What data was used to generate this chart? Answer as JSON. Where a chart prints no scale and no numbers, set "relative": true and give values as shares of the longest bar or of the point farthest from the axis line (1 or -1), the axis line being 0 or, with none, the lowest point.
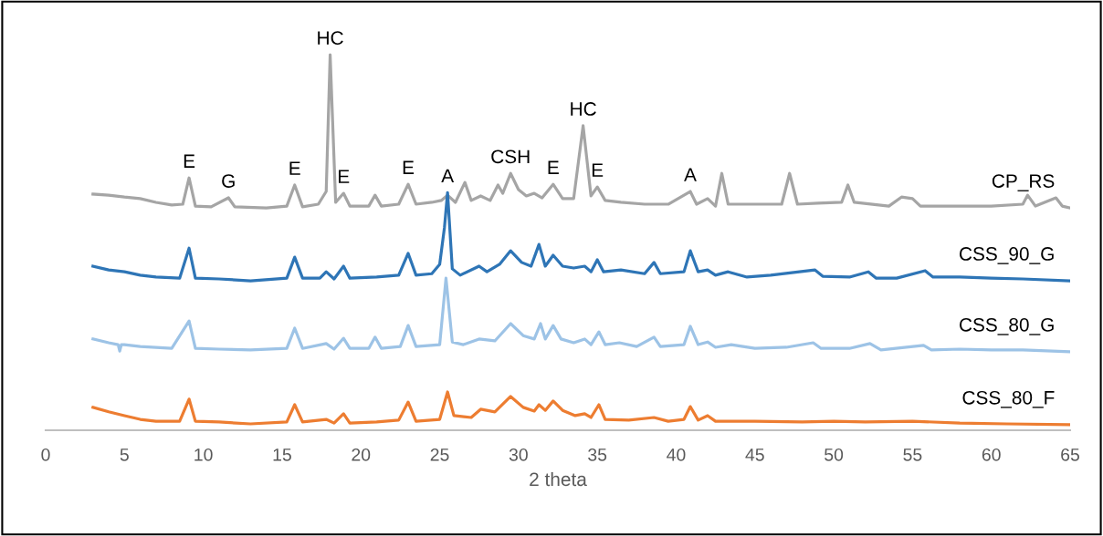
{
  "chart_data": {
    "type": "line",
    "relative": true,
    "xlabel": "2 theta",
    "xlim": [
      0,
      65
    ],
    "xticks": [
      0,
      5,
      10,
      15,
      20,
      25,
      30,
      35,
      40,
      45,
      50,
      55,
      60,
      65
    ],
    "grid": false,
    "legend": false,
    "marker": "none",
    "line_style": "solid",
    "series": [
      {
        "name": "CP_RS",
        "color": "#a5a5a5",
        "x": [
          3,
          4,
          5,
          6,
          7,
          8,
          8.7,
          9.1,
          9.5,
          10.5,
          11.6,
          12,
          14,
          15.3,
          15.8,
          16.3,
          17.3,
          17.8,
          18.05,
          18.4,
          18.9,
          19.3,
          20.5,
          20.9,
          21.3,
          22.4,
          23.0,
          23.5,
          24.5,
          25.1,
          25.5,
          26.0,
          26.6,
          27.0,
          27.6,
          28.2,
          28.7,
          29.0,
          29.5,
          30.0,
          30.5,
          31.0,
          31.5,
          32.2,
          32.8,
          33.5,
          34.1,
          34.6,
          35.0,
          35.5,
          36.5,
          38,
          39.5,
          40.9,
          41.3,
          42.0,
          42.5,
          42.9,
          43.3,
          45,
          46.7,
          47.2,
          47.7,
          49,
          50.5,
          50.9,
          51.3,
          53.5,
          54.3,
          55.0,
          55.5,
          58,
          60,
          62,
          62.3,
          62.8,
          64.1,
          64.5,
          65
        ],
        "values": [
          0.629,
          0.626,
          0.621,
          0.617,
          0.607,
          0.6,
          0.602,
          0.672,
          0.597,
          0.595,
          0.619,
          0.595,
          0.592,
          0.597,
          0.653,
          0.595,
          0.602,
          0.636,
          1.0,
          0.607,
          0.631,
          0.597,
          0.597,
          0.626,
          0.597,
          0.602,
          0.655,
          0.602,
          0.607,
          0.612,
          0.626,
          0.607,
          0.66,
          0.612,
          0.624,
          0.612,
          0.653,
          0.631,
          0.684,
          0.641,
          0.624,
          0.631,
          0.619,
          0.655,
          0.617,
          0.617,
          0.811,
          0.624,
          0.648,
          0.612,
          0.607,
          0.602,
          0.602,
          0.636,
          0.602,
          0.617,
          0.597,
          0.684,
          0.602,
          0.602,
          0.602,
          0.684,
          0.602,
          0.605,
          0.607,
          0.653,
          0.607,
          0.597,
          0.621,
          0.617,
          0.597,
          0.597,
          0.597,
          0.602,
          0.626,
          0.597,
          0.619,
          0.597,
          0.592
        ]
      },
      {
        "name": "CSS_90_G",
        "color": "#2e75b6",
        "x": [
          3,
          4,
          5,
          6,
          7,
          8.5,
          9.1,
          9.5,
          11,
          13,
          15.3,
          15.8,
          16.3,
          17.4,
          17.8,
          18.3,
          18.9,
          19.3,
          21,
          22.4,
          23.0,
          23.5,
          24.5,
          25.0,
          25.3,
          25.5,
          25.8,
          26.3,
          27.5,
          28.0,
          28.8,
          29.5,
          30.2,
          30.8,
          31.3,
          31.7,
          32.2,
          32.8,
          33.5,
          34.2,
          34.6,
          35.0,
          35.4,
          36.5,
          38.0,
          38.6,
          39.0,
          40.5,
          40.9,
          41.4,
          42.0,
          42.5,
          43.3,
          44.5,
          46,
          48.8,
          49.3,
          51,
          52.2,
          52.7,
          54,
          55.8,
          56.3,
          58,
          60,
          62,
          65
        ],
        "values": [
          0.437,
          0.427,
          0.422,
          0.413,
          0.408,
          0.405,
          0.485,
          0.405,
          0.403,
          0.398,
          0.405,
          0.461,
          0.405,
          0.405,
          0.422,
          0.403,
          0.437,
          0.405,
          0.408,
          0.413,
          0.471,
          0.413,
          0.417,
          0.442,
          0.539,
          0.633,
          0.43,
          0.413,
          0.437,
          0.422,
          0.442,
          0.478,
          0.447,
          0.437,
          0.495,
          0.437,
          0.466,
          0.437,
          0.432,
          0.437,
          0.422,
          0.454,
          0.422,
          0.427,
          0.417,
          0.447,
          0.417,
          0.422,
          0.478,
          0.422,
          0.427,
          0.413,
          0.422,
          0.408,
          0.413,
          0.427,
          0.41,
          0.408,
          0.422,
          0.405,
          0.405,
          0.425,
          0.408,
          0.408,
          0.405,
          0.403,
          0.398
        ]
      },
      {
        "name": "CSS_80_G",
        "color": "#9dc3e6",
        "x": [
          3,
          4,
          4.6,
          4.7,
          4.8,
          5,
          6,
          8,
          9.1,
          9.5,
          11,
          13,
          15.3,
          15.8,
          16.3,
          17.8,
          18.3,
          18.9,
          19.3,
          20.5,
          20.9,
          21.3,
          22.5,
          23.0,
          23.5,
          25.0,
          25.4,
          25.8,
          26.5,
          27.5,
          28.5,
          29.5,
          30.3,
          31.0,
          31.4,
          31.7,
          32.2,
          32.7,
          33.5,
          34.2,
          34.6,
          35.1,
          35.5,
          36.4,
          37.5,
          38.6,
          39.0,
          40.5,
          40.9,
          41.4,
          42.0,
          42.5,
          43.5,
          45,
          47,
          48.7,
          49.2,
          51,
          52.3,
          53,
          55.7,
          56.2,
          58,
          60,
          62,
          65
        ],
        "values": [
          0.243,
          0.233,
          0.228,
          0.211,
          0.228,
          0.228,
          0.223,
          0.218,
          0.291,
          0.218,
          0.216,
          0.214,
          0.218,
          0.272,
          0.218,
          0.231,
          0.216,
          0.245,
          0.218,
          0.218,
          0.248,
          0.218,
          0.223,
          0.279,
          0.223,
          0.228,
          0.405,
          0.235,
          0.228,
          0.243,
          0.238,
          0.284,
          0.252,
          0.243,
          0.284,
          0.243,
          0.279,
          0.243,
          0.233,
          0.243,
          0.228,
          0.262,
          0.228,
          0.233,
          0.223,
          0.248,
          0.223,
          0.228,
          0.277,
          0.228,
          0.235,
          0.221,
          0.228,
          0.218,
          0.221,
          0.233,
          0.218,
          0.218,
          0.231,
          0.214,
          0.226,
          0.214,
          0.216,
          0.214,
          0.214,
          0.209
        ]
      },
      {
        "name": "CSS_80_F",
        "color": "#ed7d31",
        "x": [
          3,
          4,
          5,
          6,
          7,
          8.5,
          9.1,
          9.5,
          11,
          13,
          15.3,
          15.8,
          16.3,
          17.8,
          18.3,
          18.9,
          19.3,
          21,
          22.4,
          23.0,
          23.5,
          25.0,
          25.5,
          25.9,
          27,
          27.6,
          28.5,
          29.5,
          30.3,
          31.0,
          31.3,
          31.7,
          32.2,
          32.8,
          33.6,
          34.2,
          34.6,
          35.1,
          35.5,
          37,
          38.6,
          39.5,
          40.5,
          40.9,
          41.4,
          42.0,
          42.5,
          45,
          48,
          50,
          52,
          55,
          58,
          61,
          65
        ],
        "values": [
          0.061,
          0.049,
          0.039,
          0.029,
          0.024,
          0.024,
          0.083,
          0.024,
          0.022,
          0.017,
          0.022,
          0.068,
          0.022,
          0.029,
          0.019,
          0.044,
          0.019,
          0.022,
          0.027,
          0.075,
          0.024,
          0.029,
          0.102,
          0.039,
          0.034,
          0.056,
          0.049,
          0.09,
          0.061,
          0.051,
          0.068,
          0.053,
          0.078,
          0.053,
          0.039,
          0.044,
          0.034,
          0.068,
          0.029,
          0.027,
          0.034,
          0.024,
          0.029,
          0.063,
          0.027,
          0.039,
          0.024,
          0.024,
          0.022,
          0.024,
          0.022,
          0.024,
          0.019,
          0.017,
          0.015
        ]
      }
    ],
    "annotations": [
      {
        "text": "E",
        "x": 9.1,
        "y": 0.672
      },
      {
        "text": "G",
        "x": 11.6,
        "y": 0.619
      },
      {
        "text": "E",
        "x": 15.8,
        "y": 0.653
      },
      {
        "text": "HC",
        "x": 18.05,
        "y": 1.0
      },
      {
        "text": "E",
        "x": 18.9,
        "y": 0.631
      },
      {
        "text": "E",
        "x": 23.0,
        "y": 0.655
      },
      {
        "text": "A",
        "x": 25.5,
        "y": 0.633
      },
      {
        "text": "CSH",
        "x": 29.5,
        "y": 0.684
      },
      {
        "text": "E",
        "x": 32.2,
        "y": 0.655
      },
      {
        "text": "HC",
        "x": 34.1,
        "y": 0.811
      },
      {
        "text": "E",
        "x": 35.0,
        "y": 0.648
      },
      {
        "text": "A",
        "x": 40.9,
        "y": 0.636
      }
    ]
  }
}
